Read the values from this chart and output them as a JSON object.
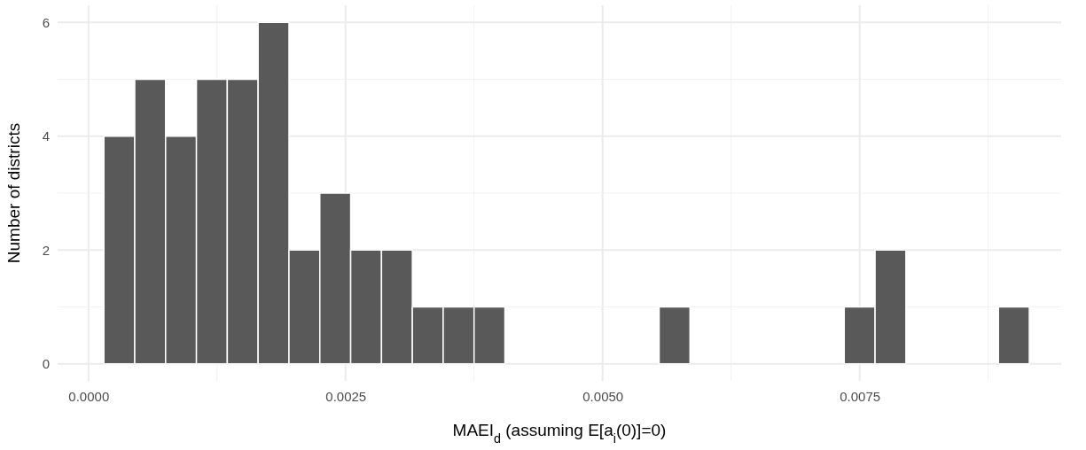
{
  "chart_data": {
    "type": "histogram",
    "xlabel": "MAEI$_{d}$ (assuming E[a$_{i}$(0)]=0)",
    "ylabel": "Number of districts",
    "bins": [
      0.00015,
      0.00045,
      0.00075,
      0.00105,
      0.00135,
      0.00165,
      0.00195,
      0.00225,
      0.00255,
      0.00285,
      0.00315,
      0.00345,
      0.00375,
      0.00405,
      0.00435,
      0.00465,
      0.00495,
      0.00525,
      0.00555,
      0.00585,
      0.00615,
      0.00645,
      0.00675,
      0.00705,
      0.00735,
      0.00765,
      0.00795,
      0.00825,
      0.00855,
      0.00885,
      0.00915
    ],
    "values": [
      4,
      5,
      4,
      5,
      5,
      6,
      2,
      3,
      2,
      2,
      1,
      1,
      1,
      0,
      0,
      0,
      0,
      0,
      1,
      0,
      0,
      0,
      0,
      0,
      1,
      2,
      0,
      0,
      0,
      1
    ],
    "color": "#595959",
    "xlim": [
      -0.0003,
      0.00946
    ],
    "ylim": [
      -0.3,
      6.3
    ],
    "xticks": [
      {
        "value": 0,
        "label": "0.0000"
      },
      {
        "value": 0.0025,
        "label": "0.0025"
      },
      {
        "value": 0.005,
        "label": "0.0050"
      },
      {
        "value": 0.0075,
        "label": "0.0075"
      }
    ],
    "yticks": [
      0,
      2,
      4,
      6
    ],
    "grid": true
  }
}
